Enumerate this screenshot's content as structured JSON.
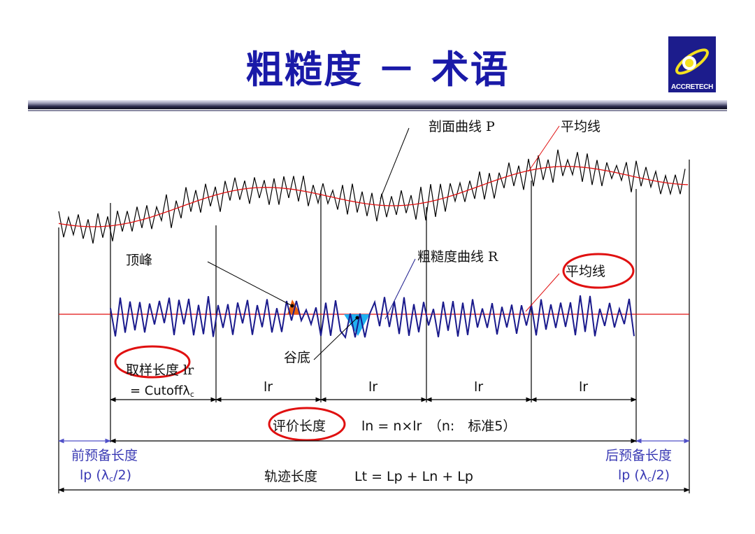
{
  "title": "粗糙度 － 术语",
  "logo": {
    "text": "ACCRETECH"
  },
  "labels": {
    "profile_curve": "剖面曲线 P",
    "mean_line_top": "平均线",
    "peak": "顶峰",
    "roughness_curve": "粗糙度曲线 R",
    "mean_line_mid": "平均线",
    "valley": "谷底",
    "sampling_length": "取样长度 lr",
    "cutoff_prefix": "= Cutoffλ",
    "cutoff_sub": "c",
    "lr": "lr",
    "eval_length_cn": "评价长度",
    "eval_length_formula": "ln = n×lr　（n:　标准5）",
    "pre_length_cn": "前预备长度",
    "pre_length_formula_a": "lp (λ",
    "pre_length_formula_sub": "c",
    "pre_length_formula_b": "/2)",
    "post_length_cn": "后预备长度",
    "post_length_formula_a": "lp (λ",
    "post_length_formula_sub": "c",
    "post_length_formula_b": "/2)",
    "traverse_length_cn": "轨迹长度",
    "traverse_length_formula": "Lt = Lp + Ln + Lp"
  },
  "colors": {
    "title": "#1a1aa8",
    "profile_line": "#000000",
    "mean_line": "#e01010",
    "roughness_line": "#1a1a8c",
    "peak_fill": "#e86010",
    "valley_fill": "#20b0f0",
    "highlight_ellipse": "#e01010",
    "prep_arrow": "#5050c8"
  }
}
